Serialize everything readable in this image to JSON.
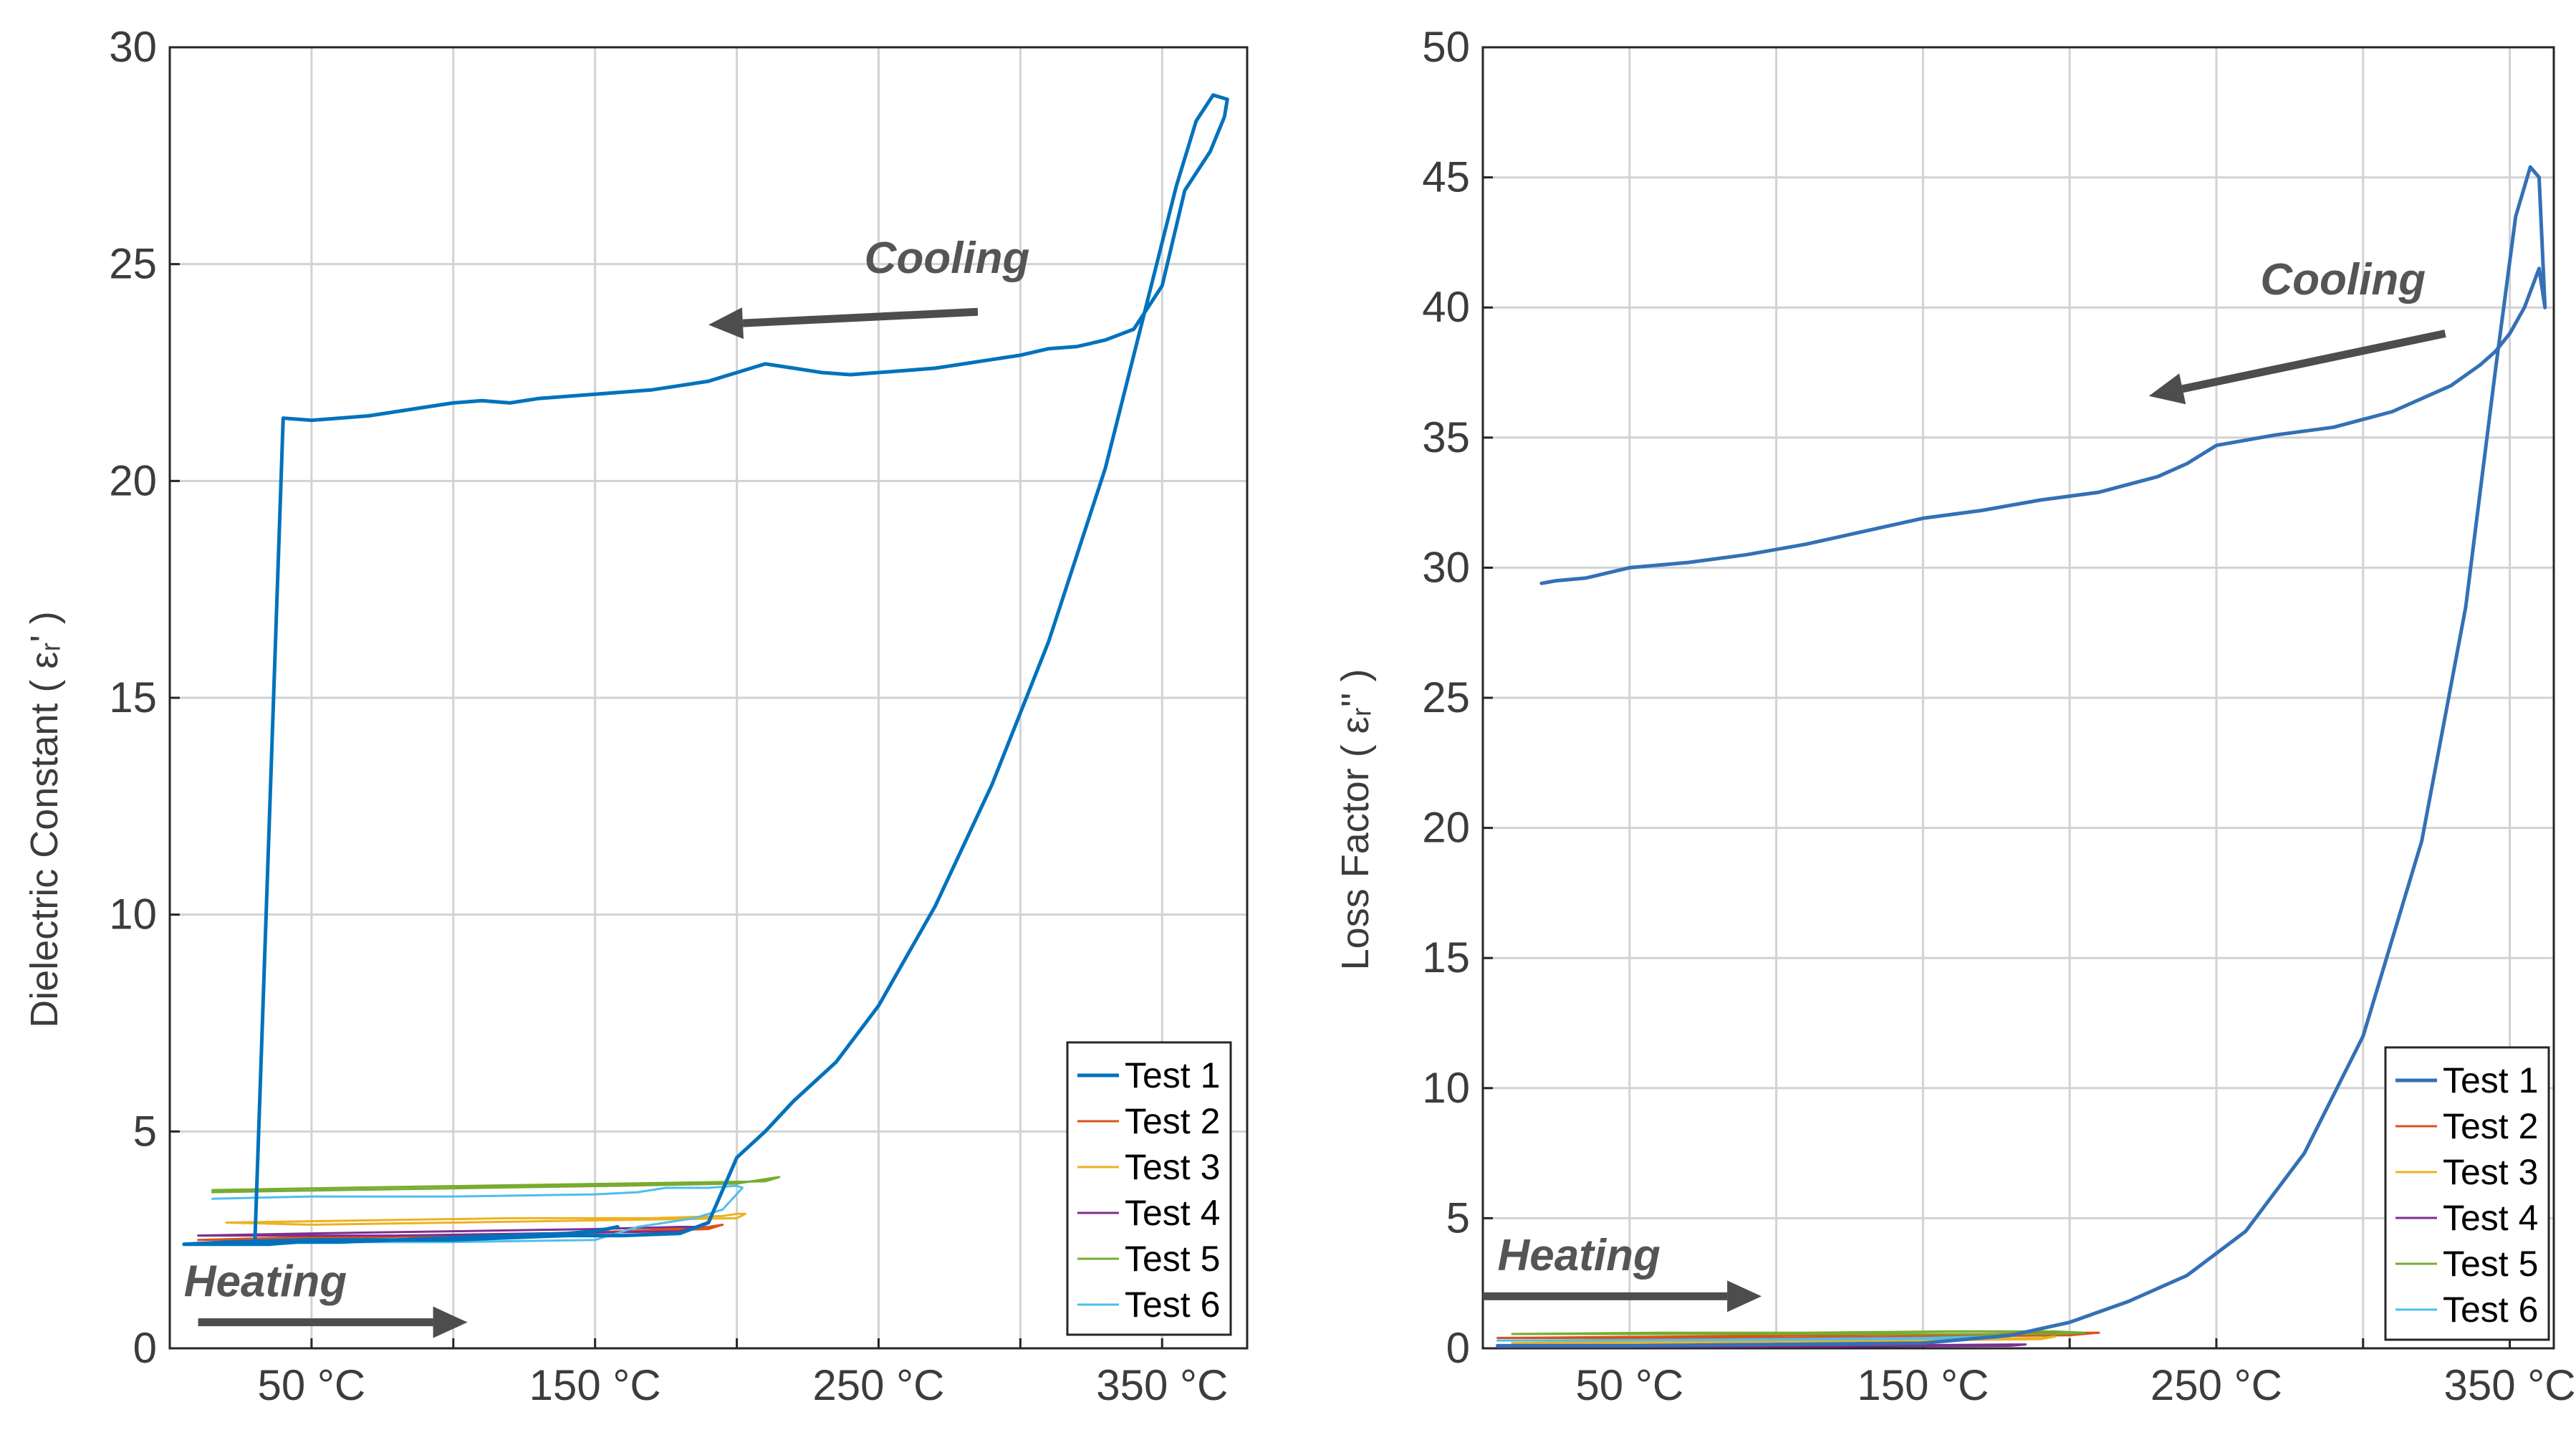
{
  "chart_data": [
    {
      "type": "line",
      "id": "left",
      "ylabel": "Dielectric Constant (εᵣ')",
      "ylabel_main": "Dielectric Constant",
      "ylabel_symbol": "( εᵣ' )",
      "xlim": [
        0,
        380
      ],
      "ylim": [
        0,
        30
      ],
      "xticks": [
        50,
        150,
        250,
        350
      ],
      "xtick_labels": [
        "50 °C",
        "150 °C",
        "250 °C",
        "350 °C"
      ],
      "yticks": [
        0,
        5,
        10,
        15,
        20,
        25,
        30
      ],
      "ytick_labels": [
        "0",
        "5",
        "10",
        "15",
        "20",
        "25",
        "30"
      ],
      "x_gridlines": [
        0,
        50,
        100,
        150,
        200,
        250,
        300,
        350
      ],
      "grid": true,
      "legend_position": "bottom-right",
      "annotations": [
        {
          "text": "Cooling",
          "x": 245,
          "y": 24.8,
          "arrow_from": [
            285,
            23.9
          ],
          "arrow_to": [
            190,
            23.6
          ]
        },
        {
          "text": "Heating",
          "x": 5,
          "y": 1.2,
          "arrow_from": [
            10,
            0.6
          ],
          "arrow_to": [
            105,
            0.6
          ]
        }
      ],
      "series": [
        {
          "name": "Test 1",
          "color": "#0072BD",
          "width": 5,
          "x": [
            20,
            28,
            35,
            45,
            60,
            80,
            100,
            120,
            140,
            160,
            180,
            190,
            200,
            210,
            220,
            235,
            250,
            270,
            290,
            310,
            330,
            345,
            355,
            362,
            368,
            373,
            372,
            367,
            358,
            350,
            340,
            330,
            320,
            310,
            300,
            290,
            280,
            270,
            260,
            250,
            240,
            230,
            220,
            210,
            200,
            190,
            180,
            170,
            160,
            150,
            140,
            130,
            120,
            110,
            100,
            90,
            80,
            70,
            60,
            50,
            40,
            30,
            20,
            8,
            5,
            20,
            50,
            80,
            100,
            120,
            140,
            150,
            158
          ],
          "y": [
            2.4,
            2.4,
            2.4,
            2.45,
            2.45,
            2.5,
            2.5,
            2.55,
            2.6,
            2.6,
            2.65,
            2.9,
            4.4,
            5.0,
            5.7,
            6.6,
            7.9,
            10.2,
            13.0,
            16.3,
            20.3,
            24.2,
            26.8,
            28.3,
            28.9,
            28.8,
            28.4,
            27.6,
            26.7,
            24.5,
            23.5,
            23.25,
            23.1,
            23.05,
            22.9,
            22.8,
            22.7,
            22.6,
            22.55,
            22.5,
            22.45,
            22.5,
            22.6,
            22.7,
            22.5,
            22.3,
            22.2,
            22.1,
            22.05,
            22.0,
            21.95,
            21.9,
            21.8,
            21.85,
            21.8,
            21.7,
            21.6,
            21.5,
            21.45,
            21.4,
            21.45,
            2.4,
            2.4,
            2.4,
            2.4,
            2.45,
            2.5,
            2.5,
            2.55,
            2.6,
            2.65,
            2.7,
            2.8
          ]
        },
        {
          "name": "Test 2",
          "color": "#D95319",
          "width": 3,
          "x": [
            10,
            60,
            110,
            160,
            190,
            195,
            190,
            140,
            90,
            40,
            10
          ],
          "y": [
            2.5,
            2.55,
            2.6,
            2.7,
            2.8,
            2.85,
            2.75,
            2.65,
            2.6,
            2.55,
            2.5
          ]
        },
        {
          "name": "Test 3",
          "color": "#EDB120",
          "width": 3,
          "x": [
            20,
            70,
            120,
            170,
            195,
            200,
            203,
            200,
            150,
            100,
            50,
            20
          ],
          "y": [
            2.9,
            2.95,
            3.0,
            3.0,
            3.05,
            3.1,
            3.1,
            3.0,
            2.95,
            2.9,
            2.85,
            2.9
          ]
        },
        {
          "name": "Test 4",
          "color": "#7E2F8E",
          "width": 3,
          "x": [
            10,
            50,
            100,
            150,
            180,
            185,
            180,
            130,
            80,
            30,
            10
          ],
          "y": [
            2.6,
            2.65,
            2.7,
            2.75,
            2.8,
            2.8,
            2.7,
            2.65,
            2.6,
            2.6,
            2.6
          ]
        },
        {
          "name": "Test 5",
          "color": "#77AC30",
          "width": 3,
          "x": [
            15,
            60,
            110,
            160,
            200,
            210,
            215,
            210,
            160,
            110,
            60,
            15
          ],
          "y": [
            3.6,
            3.65,
            3.7,
            3.75,
            3.8,
            3.9,
            3.95,
            3.85,
            3.8,
            3.75,
            3.7,
            3.65
          ]
        },
        {
          "name": "Test 6",
          "color": "#4DBEEE",
          "width": 3,
          "x": [
            15,
            50,
            100,
            150,
            165,
            175,
            190,
            200,
            202,
            195,
            185,
            175,
            165,
            150,
            100,
            50,
            15
          ],
          "y": [
            3.45,
            3.5,
            3.5,
            3.55,
            3.6,
            3.7,
            3.7,
            3.75,
            3.7,
            3.2,
            3.0,
            2.9,
            2.8,
            2.5,
            2.45,
            2.45,
            2.45
          ]
        }
      ],
      "legend": [
        "Test 1",
        "Test 2",
        "Test 3",
        "Test 4",
        "Test 5",
        "Test 6"
      ]
    },
    {
      "type": "line",
      "id": "right",
      "ylabel": "Loss Factor (εᵣ'')",
      "ylabel_main": "Loss Factor",
      "ylabel_symbol": "( εᵣ'' )",
      "xlim": [
        0,
        365
      ],
      "ylim": [
        0,
        50
      ],
      "xticks": [
        50,
        150,
        250,
        350
      ],
      "xtick_labels": [
        "50 °C",
        "150 °C",
        "250 °C",
        "350 °C"
      ],
      "yticks": [
        0,
        5,
        10,
        15,
        20,
        25,
        30,
        35,
        40,
        45,
        50
      ],
      "ytick_labels": [
        "0",
        "5",
        "10",
        "15",
        "20",
        "25",
        "30",
        "35",
        "40",
        "45",
        "50"
      ],
      "x_gridlines": [
        0,
        50,
        100,
        150,
        200,
        250,
        300,
        350
      ],
      "grid": true,
      "legend_position": "bottom-right",
      "annotations": [
        {
          "text": "Cooling",
          "x": 265,
          "y": 40.5,
          "arrow_from": [
            328,
            39.0
          ],
          "arrow_to": [
            227,
            36.6
          ]
        },
        {
          "text": "Heating",
          "x": 5,
          "y": 3.0,
          "arrow_from": [
            0,
            2.0
          ],
          "arrow_to": [
            95,
            2.0
          ]
        }
      ],
      "series": [
        {
          "name": "Test 1",
          "color": "#3470B5",
          "width": 5,
          "x": [
            5,
            50,
            100,
            150,
            180,
            200,
            220,
            240,
            260,
            280,
            300,
            320,
            335,
            345,
            352,
            357,
            360,
            362,
            360,
            355,
            350,
            345,
            340,
            330,
            310,
            290,
            270,
            250,
            240,
            230,
            210,
            190,
            170,
            150,
            130,
            110,
            90,
            70,
            50,
            35,
            25,
            20
          ],
          "y": [
            0.1,
            0.1,
            0.15,
            0.2,
            0.5,
            1.0,
            1.8,
            2.8,
            4.5,
            7.5,
            12.0,
            19.5,
            28.5,
            37.5,
            43.5,
            45.4,
            45.0,
            40.0,
            41.5,
            40.0,
            39.0,
            38.3,
            37.8,
            37.0,
            36.0,
            35.4,
            35.1,
            34.7,
            34.0,
            33.5,
            32.9,
            32.6,
            32.2,
            31.9,
            31.4,
            30.9,
            30.5,
            30.2,
            30.0,
            29.6,
            29.5,
            29.4
          ]
        },
        {
          "name": "Test 2",
          "color": "#D95319",
          "width": 3,
          "x": [
            5,
            60,
            120,
            170,
            200,
            210,
            200,
            150,
            100,
            50,
            5
          ],
          "y": [
            0.4,
            0.45,
            0.5,
            0.55,
            0.6,
            0.6,
            0.5,
            0.45,
            0.4,
            0.4,
            0.4
          ]
        },
        {
          "name": "Test 3",
          "color": "#EDB120",
          "width": 3,
          "x": [
            10,
            60,
            110,
            160,
            190,
            195,
            190,
            140,
            90,
            40,
            10
          ],
          "y": [
            0.2,
            0.25,
            0.3,
            0.35,
            0.4,
            0.45,
            0.35,
            0.3,
            0.25,
            0.2,
            0.2
          ]
        },
        {
          "name": "Test 4",
          "color": "#7E2F8E",
          "width": 3,
          "x": [
            5,
            50,
            100,
            150,
            180,
            185,
            180,
            130,
            80,
            30,
            5
          ],
          "y": [
            0.05,
            0.08,
            0.1,
            0.12,
            0.15,
            0.15,
            0.1,
            0.08,
            0.06,
            0.05,
            0.05
          ]
        },
        {
          "name": "Test 5",
          "color": "#77AC30",
          "width": 3,
          "x": [
            10,
            60,
            110,
            160,
            195,
            205,
            195,
            150,
            100,
            50,
            10
          ],
          "y": [
            0.55,
            0.6,
            0.6,
            0.65,
            0.65,
            0.6,
            0.55,
            0.55,
            0.55,
            0.55,
            0.55
          ]
        },
        {
          "name": "Test 6",
          "color": "#4DBEEE",
          "width": 3,
          "x": [
            5,
            50,
            100,
            150,
            170,
            180,
            175,
            130,
            80,
            30,
            5
          ],
          "y": [
            0.3,
            0.32,
            0.35,
            0.4,
            0.45,
            0.5,
            0.4,
            0.35,
            0.32,
            0.3,
            0.3
          ]
        }
      ],
      "legend": [
        "Test 1",
        "Test 2",
        "Test 3",
        "Test 4",
        "Test 5",
        "Test 6"
      ]
    }
  ]
}
